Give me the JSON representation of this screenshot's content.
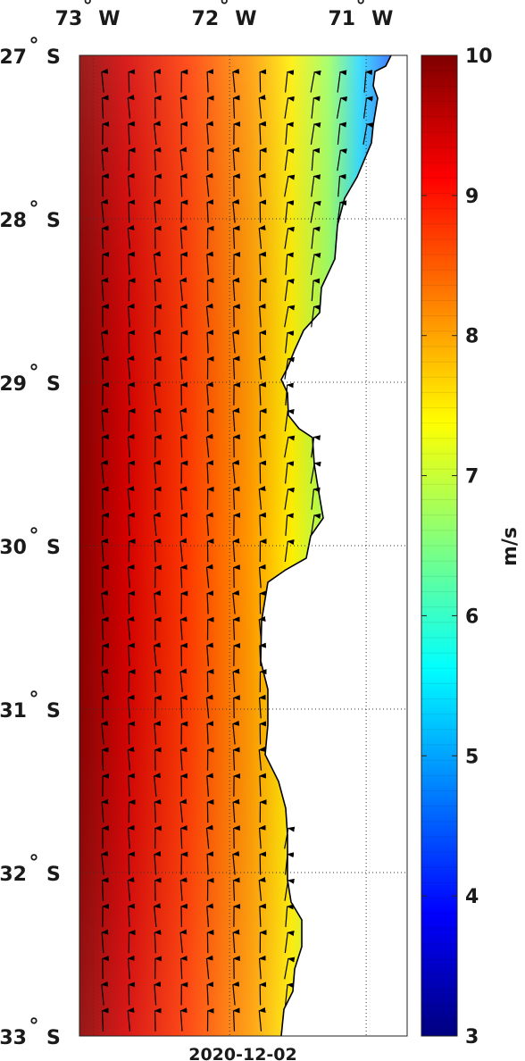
{
  "map": {
    "date": "2020-12-02",
    "lon_labels": [
      {
        "deg": "73",
        "hemi": "W",
        "lon": -73
      },
      {
        "deg": "72",
        "hemi": "W",
        "lon": -72
      },
      {
        "deg": "71",
        "hemi": "W",
        "lon": -71
      }
    ],
    "lat_labels": [
      {
        "deg": "27",
        "hemi": "S",
        "lat": -27
      },
      {
        "deg": "28",
        "hemi": "S",
        "lat": -28
      },
      {
        "deg": "29",
        "hemi": "S",
        "lat": -29
      },
      {
        "deg": "30",
        "hemi": "S",
        "lat": -30
      },
      {
        "deg": "31",
        "hemi": "S",
        "lat": -31
      },
      {
        "deg": "32",
        "hemi": "S",
        "lat": -32
      },
      {
        "deg": "33",
        "hemi": "S",
        "lat": -33
      }
    ],
    "extent": {
      "lon_min": -73.1,
      "lon_max": -70.7,
      "lat_min": -33,
      "lat_max": -27
    },
    "variable": "wind speed",
    "colorbar": {
      "unit": "m/s",
      "min": 3,
      "max": 10,
      "ticks": [
        "3",
        "4",
        "5",
        "6",
        "7",
        "8",
        "9",
        "10"
      ],
      "colormap": "jet"
    },
    "colors": {
      "land": "#ffffff",
      "coast": "#000000",
      "grid": "#333333",
      "arrows": "#000000"
    }
  }
}
